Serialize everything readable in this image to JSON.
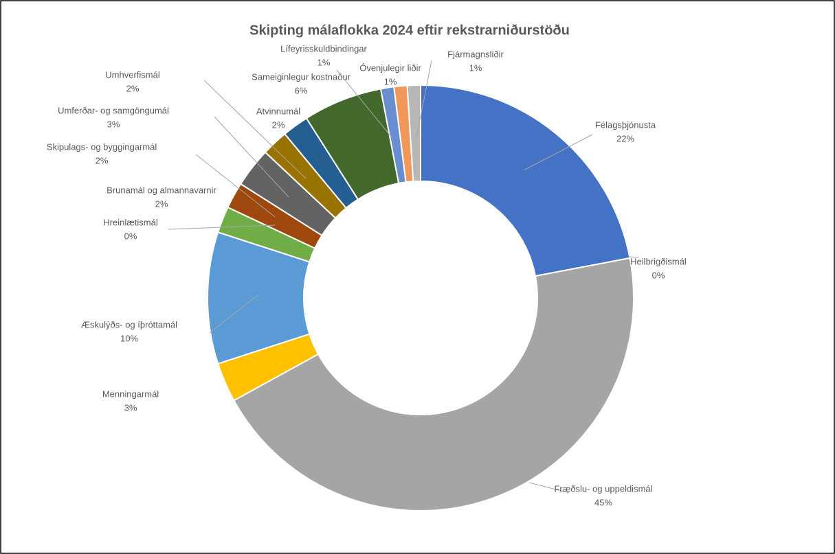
{
  "chart_data": {
    "type": "donut",
    "title": "Skipting málaflokka 2024 eftir rekstrarniðurstöðu",
    "categories": [
      "Félagsþjónusta",
      "Heilbrigðismál",
      "Fræðslu- og uppeldismál",
      "Menningarmál",
      "Æskulýðs- og íþróttamál",
      "Hreinlætismál",
      "Brunamál og almannavarnir",
      "Skipulags- og byggingarmál",
      "Umferðar- og samgöngumál",
      "Umhverfismál",
      "Atvinnumál",
      "Sameiginlegur kostnaður",
      "Lífeyrisskuldbindingar",
      "Óvenjulegir liðir",
      "Fjármagnsliðir"
    ],
    "values": [
      22,
      0,
      45,
      3,
      10,
      0,
      2,
      2,
      3,
      2,
      2,
      6,
      1,
      1,
      1
    ],
    "value_labels": [
      "22%",
      "0%",
      "45%",
      "3%",
      "10%",
      "0%",
      "2%",
      "2%",
      "3%",
      "2%",
      "2%",
      "6%",
      "1%",
      "1%",
      "1%"
    ],
    "colors": [
      "#4472c4",
      "#ed7d31",
      "#a5a5a5",
      "#ffc000",
      "#5b9bd5",
      "#70ad47",
      "#70ad47",
      "#9e480e",
      "#636363",
      "#997300",
      "#255e91",
      "#43682b",
      "#698ed0",
      "#f1975a",
      "#b7b7b7"
    ]
  }
}
